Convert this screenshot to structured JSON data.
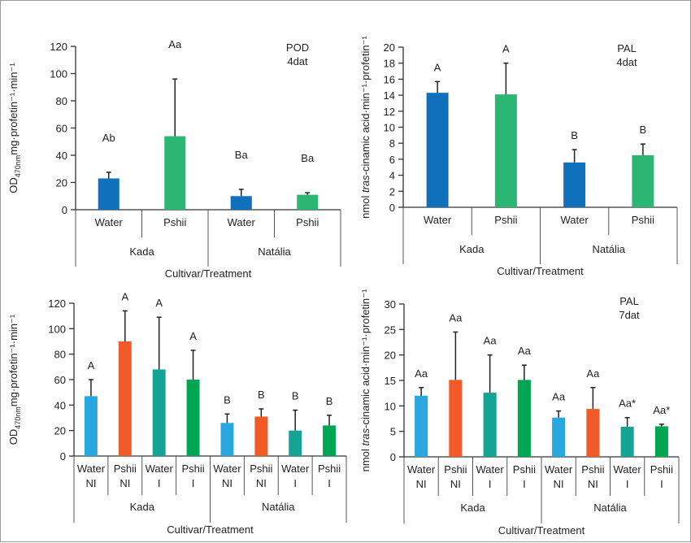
{
  "chart_data": [
    {
      "type": "bar",
      "title_lines": [
        "POD",
        "4dat"
      ],
      "ylabel": {
        "pre": "OD",
        "sub": "470nm",
        "post": "mg·profetin⁻¹·min⁻¹",
        "italic": ""
      },
      "xlabel": "Cultivar/Treatment",
      "ylim": [
        0,
        120
      ],
      "yticks": [
        0,
        20,
        40,
        60,
        80,
        100,
        120
      ],
      "groups": [
        "Kada",
        "Natália"
      ],
      "categories": [
        [
          "Water"
        ],
        [
          "Pshii"
        ],
        [
          "Water"
        ],
        [
          "Pshii"
        ]
      ],
      "values": [
        23,
        54,
        10,
        11
      ],
      "errors_upper": [
        27.5,
        96,
        15,
        12.5
      ],
      "letters": [
        "Ab",
        "Aa",
        "Ba",
        "Ba"
      ],
      "colors": [
        "#1170BB",
        "#2BB673",
        "#1170BB",
        "#2BB673"
      ]
    },
    {
      "type": "bar",
      "title_lines": [
        "PAL",
        "4dat"
      ],
      "ylabel": {
        "pre": "nmol ",
        "italic": "tras",
        "post": "-cinamic acid·min⁻¹·profetin⁻¹",
        "sub": ""
      },
      "xlabel": "Cultivar/Treatment",
      "ylim": [
        0,
        20
      ],
      "yticks": [
        0,
        2,
        4,
        6,
        8,
        10,
        12,
        14,
        16,
        18,
        20
      ],
      "groups": [
        "Kada",
        "Natália"
      ],
      "categories": [
        [
          "Water"
        ],
        [
          "Pshii"
        ],
        [
          "Water"
        ],
        [
          "Pshii"
        ]
      ],
      "values": [
        14.3,
        14.1,
        5.6,
        6.5
      ],
      "errors_upper": [
        15.7,
        18,
        7.2,
        7.9
      ],
      "letters": [
        "A",
        "A",
        "B",
        "B"
      ],
      "colors": [
        "#1170BB",
        "#2BB673",
        "#1170BB",
        "#2BB673"
      ]
    },
    {
      "type": "bar",
      "title_lines": [],
      "ylabel": {
        "pre": "OD",
        "sub": "470nm",
        "post": "mg·profetin⁻¹·min⁻¹",
        "italic": ""
      },
      "xlabel": "Cultivar/Treatment",
      "ylim": [
        0,
        120
      ],
      "yticks": [
        0,
        20,
        40,
        60,
        80,
        100,
        120
      ],
      "groups": [
        "Kada",
        "Natália"
      ],
      "categories": [
        [
          "Water",
          "NI"
        ],
        [
          "Pshii",
          "NI"
        ],
        [
          "Water",
          "I"
        ],
        [
          "Pshii",
          "I"
        ],
        [
          "Water",
          "NI"
        ],
        [
          "Pshii",
          "NI"
        ],
        [
          "Water",
          "I"
        ],
        [
          "Pshii",
          "I"
        ]
      ],
      "values": [
        47,
        90,
        68,
        60,
        26,
        31,
        20,
        24
      ],
      "errors_upper": [
        60,
        114,
        109,
        83,
        33,
        37,
        36,
        32
      ],
      "letters": [
        "A",
        "A",
        "A",
        "A",
        "B",
        "B",
        "B",
        "B"
      ],
      "colors": [
        "#29A8E0",
        "#F05A28",
        "#14A395",
        "#00A651",
        "#29A8E0",
        "#F05A28",
        "#14A395",
        "#00A651"
      ]
    },
    {
      "type": "bar",
      "title_lines": [
        "PAL",
        "7dat"
      ],
      "ylabel": {
        "pre": "nmol ",
        "italic": "tras",
        "post": "-cinamic acid·min⁻¹·profetin⁻¹",
        "sub": ""
      },
      "xlabel": "Cultivar/Treatment",
      "ylim": [
        0,
        30
      ],
      "yticks": [
        0,
        5,
        10,
        15,
        20,
        25,
        30
      ],
      "groups": [
        "Kada",
        "Natália"
      ],
      "categories": [
        [
          "Water",
          "NI"
        ],
        [
          "Pshii",
          "NI"
        ],
        [
          "Water",
          "I"
        ],
        [
          "Pshii",
          "I"
        ],
        [
          "Water",
          "NI"
        ],
        [
          "Pshii",
          "NI"
        ],
        [
          "Water",
          "I"
        ],
        [
          "Pshii",
          "I"
        ]
      ],
      "values": [
        12,
        15.1,
        12.6,
        15.1,
        7.7,
        9.4,
        5.9,
        6
      ],
      "errors_upper": [
        13.6,
        24.5,
        20,
        18,
        9,
        13.6,
        7.7,
        6.4
      ],
      "letters": [
        "Aa",
        "Aa",
        "Aa",
        "Aa",
        "Aa",
        "Aa",
        "Aa*",
        "Aa*"
      ],
      "colors": [
        "#29A8E0",
        "#F05A28",
        "#14A395",
        "#00A651",
        "#29A8E0",
        "#F05A28",
        "#14A395",
        "#00A651"
      ]
    }
  ]
}
